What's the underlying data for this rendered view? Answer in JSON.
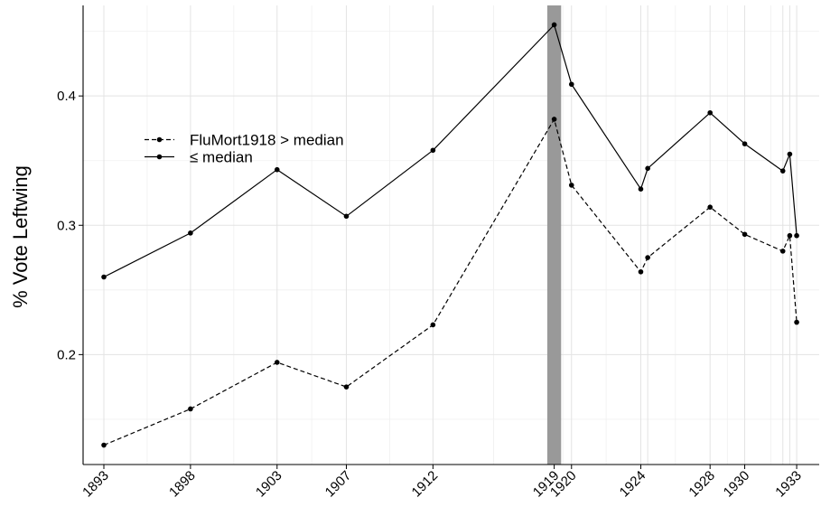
{
  "chart_data": {
    "type": "line",
    "title": "",
    "xlabel": "",
    "ylabel": "% Vote Leftwing",
    "x": [
      1893,
      1898,
      1903,
      1907,
      1912,
      1919,
      1920,
      1924,
      1924.4,
      1928,
      1930,
      1932.2,
      1932.6,
      1933
    ],
    "xticks": [
      1893,
      1898,
      1903,
      1907,
      1912,
      1919,
      1920,
      1924,
      1928,
      1930,
      1933
    ],
    "yticks": [
      0.2,
      0.3,
      0.4
    ],
    "ytick_labels": [
      "0.2",
      "0.3",
      "0.4"
    ],
    "xlim": [
      1891.8,
      1934.3
    ],
    "ylim": [
      0.115,
      0.47
    ],
    "grid": true,
    "legend_position": "top-left",
    "shaded_band": {
      "from": 1918.6,
      "to": 1919.4,
      "color": "#999999"
    },
    "series": [
      {
        "name": "FluMort1918 > median",
        "dash": "dashed",
        "values": [
          0.13,
          0.158,
          0.194,
          0.175,
          0.223,
          0.382,
          0.331,
          0.264,
          0.275,
          0.314,
          0.293,
          0.28,
          0.292,
          0.225
        ]
      },
      {
        "name": "≤ median",
        "dash": "solid",
        "values": [
          0.26,
          0.294,
          0.343,
          0.307,
          0.358,
          0.455,
          0.409,
          0.328,
          0.344,
          0.387,
          0.363,
          0.342,
          0.355,
          0.292
        ]
      }
    ],
    "extra_gridlines_x": [
      1924.4,
      1932.2,
      1932.6
    ]
  }
}
